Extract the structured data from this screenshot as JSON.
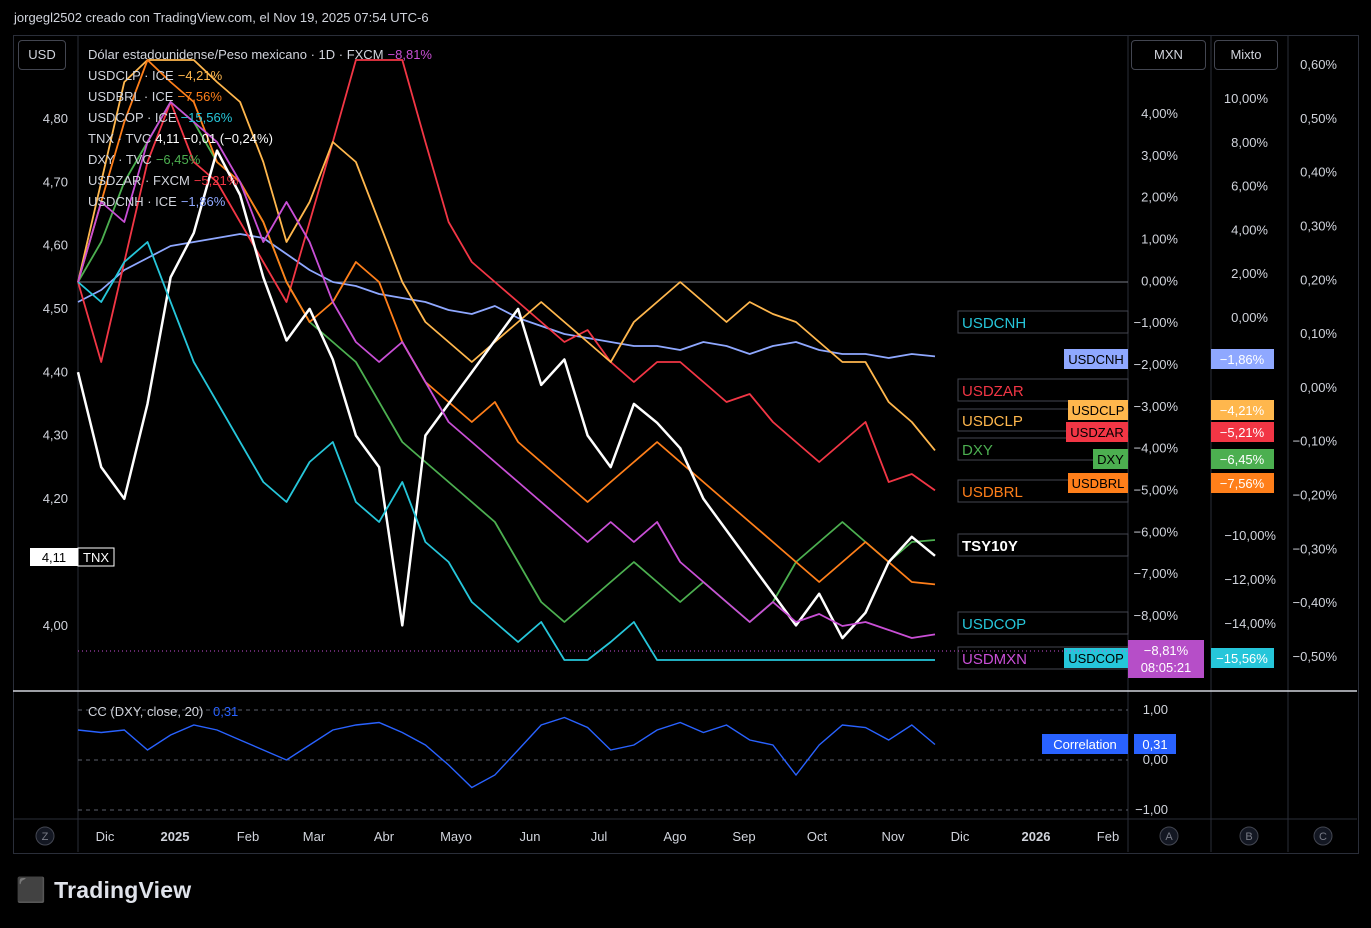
{
  "credit": "jorgegl2502 creado con TradingView.com, el Nov 19, 2025 07:54 UTC-6",
  "brand": "TradingView",
  "left_axis_label": "USD",
  "right_buttons": {
    "mxn": "MXN",
    "mixto": "Mixto"
  },
  "bottom_buttons": {
    "z": "Z",
    "a": "A",
    "b": "B",
    "c": "C"
  },
  "legend": [
    {
      "name": "Dólar estadounidense/Peso mexicano · 1D · FXCM",
      "value": "−8,81%",
      "color": "#c94fd6"
    },
    {
      "name": "USDCLP · ICE",
      "value": "−4,21%",
      "color": "#ffb74d"
    },
    {
      "name": "USDBRL · ICE",
      "value": "−7,56%",
      "color": "#ff7f1a"
    },
    {
      "name": "USDCOP · ICE",
      "value": "−15,56%",
      "color": "#26c6da"
    },
    {
      "name": "TNX · TVC",
      "value": "4,11 −0,01 (−0,24%)",
      "color": "#ffffff"
    },
    {
      "name": "DXY · TVC",
      "value": "−6,45%",
      "color": "#4caf50"
    },
    {
      "name": "USDZAR · FXCM",
      "value": "−5,21%",
      "color": "#f23645"
    },
    {
      "name": "USDCNH · ICE",
      "value": "−1,86%",
      "color": "#8fa8ff"
    }
  ],
  "osc_legend": {
    "name": "CC (DXY, close, 20)",
    "value": "0,31"
  },
  "tnx_badge": {
    "value": "4,11",
    "label": "TNX"
  },
  "last_price_mxn": {
    "value": "−8,81%",
    "countdown": "08:05:21"
  },
  "correlation_badge": {
    "label": "Correlation",
    "value": "0,31"
  },
  "chart_data": {
    "type": "line",
    "x_ticks": [
      "Dic",
      "2025",
      "Feb",
      "Mar",
      "Abr",
      "Mayo",
      "Jun",
      "Jul",
      "Ago",
      "Sep",
      "Oct",
      "Nov",
      "Dic",
      "2026",
      "Feb"
    ],
    "left_axis_ticks": [
      "4,80",
      "4,70",
      "4,60",
      "4,50",
      "4,40",
      "4,30",
      "4,20",
      "4,00"
    ],
    "mxn_axis_ticks": [
      "4,00%",
      "3,00%",
      "2,00%",
      "1,00%",
      "0,00%",
      "−1,00%",
      "−2,00%",
      "−3,00%",
      "−4,00%",
      "−5,00%",
      "−6,00%",
      "−7,00%",
      "−8,00%"
    ],
    "mixto_axis_ticks": [
      "10,00%",
      "8,00%",
      "6,00%",
      "4,00%",
      "2,00%",
      "0,00%",
      "−10,00%",
      "−12,00%",
      "−14,00%"
    ],
    "right_axis_ticks": [
      "0,60%",
      "0,50%",
      "0,40%",
      "0,30%",
      "0,20%",
      "0,10%",
      "0,00%",
      "−0,10%",
      "−0,20%",
      "−0,30%",
      "−0,40%",
      "−0,50%"
    ],
    "osc_axis_ticks": [
      "1,00",
      "0,00",
      "−1,00"
    ],
    "series": [
      {
        "name": "USDCNH",
        "color": "#8fa8ff",
        "end_label": "USDCNH",
        "end_value": "−1,86%",
        "tag_color": "#26c6da",
        "values": [
          -0.5,
          -0.2,
          0.3,
          0.6,
          0.9,
          1.0,
          1.1,
          1.2,
          1.1,
          0.7,
          0.3,
          0.0,
          -0.1,
          -0.3,
          -0.4,
          -0.5,
          -0.7,
          -0.8,
          -0.6,
          -0.9,
          -1.1,
          -1.3,
          -1.4,
          -1.5,
          -1.6,
          -1.6,
          -1.7,
          -1.5,
          -1.6,
          -1.8,
          -1.6,
          -1.5,
          -1.7,
          -1.8,
          -1.8,
          -1.9,
          -1.8,
          -1.86
        ]
      },
      {
        "name": "USDZAR",
        "color": "#f23645",
        "end_label": "USDZAR",
        "end_value": "−5,21%",
        "values": [
          0.0,
          -2.0,
          0.5,
          3.0,
          4.5,
          3.0,
          2.5,
          1.5,
          0.5,
          -0.5,
          1.5,
          3.5,
          6.0,
          9.5,
          7.0,
          3.5,
          1.5,
          0.5,
          0.0,
          -0.5,
          -1.0,
          -1.5,
          -1.2,
          -2.0,
          -2.5,
          -2.0,
          -2.0,
          -2.5,
          -3.0,
          -2.8,
          -3.5,
          -4.0,
          -4.5,
          -4.0,
          -3.5,
          -5.0,
          -4.8,
          -5.21
        ]
      },
      {
        "name": "USDCLP",
        "color": "#ffb74d",
        "end_label": "USDCLP",
        "end_value": "−4,21%",
        "values": [
          0.0,
          2.5,
          5.0,
          6.5,
          7.5,
          6.0,
          5.0,
          4.5,
          3.0,
          1.0,
          2.0,
          3.5,
          3.0,
          1.5,
          0.0,
          -1.0,
          -1.5,
          -2.0,
          -1.5,
          -1.0,
          -0.5,
          -1.0,
          -1.5,
          -2.0,
          -1.0,
          -0.5,
          0.0,
          -0.5,
          -1.0,
          -0.5,
          -0.8,
          -1.0,
          -1.5,
          -2.0,
          -2.0,
          -3.0,
          -3.5,
          -4.21
        ]
      },
      {
        "name": "DXY",
        "color": "#4caf50",
        "end_label": "DXY",
        "end_value": "−6,45%",
        "values": [
          0.0,
          1.0,
          2.5,
          3.5,
          4.5,
          4.0,
          3.0,
          2.5,
          1.5,
          0.0,
          -1.0,
          -1.5,
          -2.0,
          -3.0,
          -4.0,
          -4.5,
          -5.0,
          -5.5,
          -6.0,
          -7.0,
          -8.0,
          -8.5,
          -8.0,
          -7.5,
          -7.0,
          -7.5,
          -8.0,
          -7.5,
          -8.0,
          -8.5,
          -8.0,
          -7.0,
          -6.5,
          -6.0,
          -6.5,
          -7.0,
          -6.5,
          -6.45
        ]
      },
      {
        "name": "USDBRL",
        "color": "#ff7f1a",
        "end_label": "USDBRL",
        "end_value": "−7,56%",
        "values": [
          0.0,
          2.0,
          4.0,
          6.0,
          5.0,
          4.5,
          3.0,
          2.5,
          1.5,
          0.0,
          -1.0,
          -0.5,
          0.5,
          0.0,
          -1.5,
          -2.5,
          -3.0,
          -3.5,
          -3.0,
          -4.0,
          -4.5,
          -5.0,
          -5.5,
          -5.0,
          -4.5,
          -4.0,
          -4.5,
          -5.0,
          -5.5,
          -6.0,
          -6.5,
          -7.0,
          -7.5,
          -7.0,
          -6.5,
          -7.0,
          -7.5,
          -7.56
        ]
      },
      {
        "name": "TNX",
        "color": "#ffffff",
        "end_label": "TSY10Y",
        "end_value": "4,11",
        "values": [
          4.4,
          4.25,
          4.2,
          4.35,
          4.55,
          4.62,
          4.75,
          4.68,
          4.55,
          4.45,
          4.5,
          4.42,
          4.3,
          4.25,
          4.0,
          4.3,
          4.35,
          4.4,
          4.45,
          4.5,
          4.38,
          4.42,
          4.3,
          4.25,
          4.35,
          4.32,
          4.28,
          4.2,
          4.15,
          4.1,
          4.05,
          4.0,
          4.05,
          3.98,
          4.02,
          4.1,
          4.14,
          4.11
        ]
      },
      {
        "name": "USDCOP",
        "color": "#26c6da",
        "end_label": "USDCOP",
        "end_value": "−15,56%",
        "values": [
          0.0,
          -0.5,
          0.5,
          1.0,
          -0.5,
          -2.0,
          -3.0,
          -4.0,
          -5.0,
          -5.5,
          -4.5,
          -4.0,
          -5.5,
          -6.0,
          -5.0,
          -6.5,
          -7.0,
          -8.0,
          -8.5,
          -9.0,
          -8.5,
          -9.5,
          -10.0,
          -9.0,
          -8.5,
          -9.5,
          -10.5,
          -11.0,
          -11.5,
          -12.0,
          -12.5,
          -12.0,
          -12.5,
          -13.0,
          -13.5,
          -14.5,
          -15.0,
          -15.56
        ]
      },
      {
        "name": "USDMXN",
        "color": "#c94fd6",
        "end_label": "USDMXN",
        "end_value": "−8,81%",
        "values": [
          0.0,
          2.0,
          1.5,
          3.5,
          4.5,
          4.0,
          3.5,
          2.5,
          1.0,
          2.0,
          1.0,
          -0.5,
          -1.5,
          -2.0,
          -1.5,
          -2.5,
          -3.5,
          -4.0,
          -4.5,
          -5.0,
          -5.5,
          -6.0,
          -6.5,
          -6.0,
          -6.5,
          -6.0,
          -7.0,
          -7.5,
          -8.0,
          -8.5,
          -8.0,
          -8.5,
          -8.3,
          -8.6,
          -8.5,
          -8.7,
          -8.9,
          -8.81
        ]
      }
    ],
    "oscillator": {
      "name": "CC (DXY, close, 20)",
      "color": "#2962ff",
      "ylim": [
        -1,
        1
      ],
      "values": [
        0.6,
        0.55,
        0.6,
        0.2,
        0.5,
        0.7,
        0.6,
        0.4,
        0.2,
        0.0,
        0.3,
        0.6,
        0.7,
        0.75,
        0.55,
        0.3,
        -0.1,
        -0.55,
        -0.3,
        0.2,
        0.7,
        0.85,
        0.65,
        0.2,
        0.3,
        0.6,
        0.75,
        0.55,
        0.7,
        0.4,
        0.3,
        -0.3,
        0.3,
        0.7,
        0.65,
        0.4,
        0.7,
        0.31
      ]
    }
  }
}
